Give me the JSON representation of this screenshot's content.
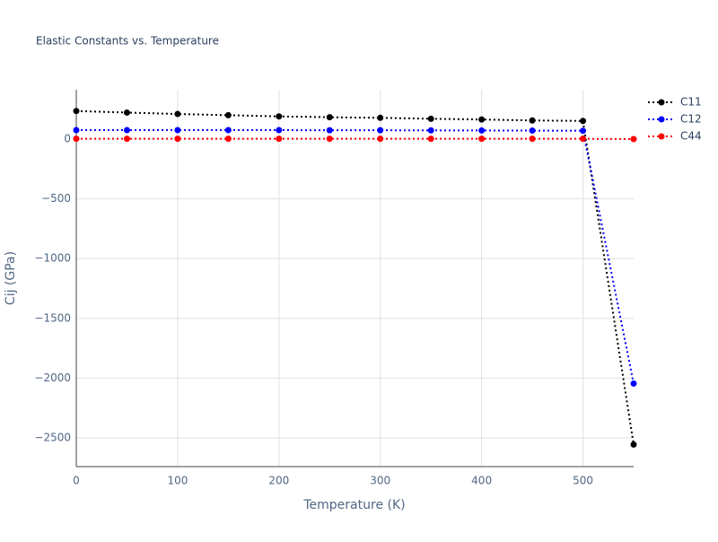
{
  "chart_data": {
    "type": "line",
    "title": "Elastic Constants vs. Temperature",
    "x_label": "Temperature (K)",
    "y_label": "Cij (GPa)",
    "x": [
      0,
      50,
      100,
      150,
      200,
      250,
      300,
      350,
      400,
      450,
      500,
      550
    ],
    "series": [
      {
        "name": "C11",
        "color": "#000000",
        "values": [
          235,
          222,
          210,
          200,
          190,
          183,
          178,
          170,
          164,
          156,
          152,
          -2555
        ]
      },
      {
        "name": "C12",
        "color": "#0000ff",
        "values": [
          75,
          75,
          75,
          75,
          75,
          74,
          74,
          73,
          72,
          71,
          70,
          -2045
        ]
      },
      {
        "name": "C44",
        "color": "#ff0000",
        "values": [
          3,
          3,
          3,
          3,
          3,
          3,
          3,
          3,
          3,
          3,
          3,
          0
        ]
      }
    ],
    "xlim": [
      0,
      550
    ],
    "ylim": [
      -2740,
      413
    ],
    "xticks": [
      0,
      100,
      200,
      300,
      400,
      500
    ],
    "yticks": [
      {
        "value": -2500,
        "label": "−2500"
      },
      {
        "value": -2000,
        "label": "−2000"
      },
      {
        "value": -1500,
        "label": "−1500"
      },
      {
        "value": -1000,
        "label": "−1000"
      },
      {
        "value": -500,
        "label": "−500"
      },
      0
    ],
    "grid": true,
    "legend": "top-right"
  }
}
